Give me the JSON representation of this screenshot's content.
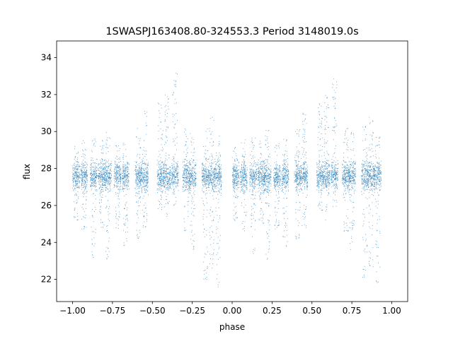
{
  "chart_data": {
    "type": "scatter",
    "title": "1SWASPJ163408.80-324553.3 Period 3148019.0s",
    "xlabel": "phase",
    "ylabel": "flux",
    "xlim": [
      -1.1,
      1.1
    ],
    "ylim": [
      20.8,
      34.9
    ],
    "x_ticks": [
      -1.0,
      -0.75,
      -0.5,
      -0.25,
      0.0,
      0.25,
      0.5,
      0.75,
      1.0
    ],
    "x_tick_labels": [
      "−1.00",
      "−0.75",
      "−0.50",
      "−0.25",
      "0.00",
      "0.25",
      "0.50",
      "0.75",
      "1.00"
    ],
    "y_ticks": [
      22,
      24,
      26,
      28,
      30,
      32,
      34
    ],
    "y_tick_labels": [
      "22",
      "24",
      "26",
      "28",
      "30",
      "32",
      "34"
    ],
    "grid": false,
    "marker_color": "#1f77b4",
    "phase_range": [
      -1.0,
      1.0
    ],
    "baseline_flux": 27.6,
    "clusters": [
      {
        "x": 0.02,
        "y_min": 25.2,
        "y_max": 29.2
      },
      {
        "x": 0.07,
        "y_min": 24.6,
        "y_max": 29.6
      },
      {
        "x": 0.13,
        "y_min": 23.2,
        "y_max": 29.8
      },
      {
        "x": 0.18,
        "y_min": 24.8,
        "y_max": 29.6
      },
      {
        "x": 0.22,
        "y_min": 23.0,
        "y_max": 30.2
      },
      {
        "x": 0.28,
        "y_min": 24.6,
        "y_max": 29.4
      },
      {
        "x": 0.33,
        "y_min": 23.8,
        "y_max": 29.6
      },
      {
        "x": 0.41,
        "y_min": 24.2,
        "y_max": 30.2
      },
      {
        "x": 0.45,
        "y_min": 24.8,
        "y_max": 31.2
      },
      {
        "x": 0.55,
        "y_min": 25.6,
        "y_max": 31.6
      },
      {
        "x": 0.59,
        "y_min": 25.2,
        "y_max": 32.0
      },
      {
        "x": 0.64,
        "y_min": 25.8,
        "y_max": 33.2
      },
      {
        "x": 0.71,
        "y_min": 24.6,
        "y_max": 30.2
      },
      {
        "x": 0.75,
        "y_min": 23.6,
        "y_max": 30.0
      },
      {
        "x": 0.83,
        "y_min": 22.0,
        "y_max": 30.4
      },
      {
        "x": 0.87,
        "y_min": 22.6,
        "y_max": 30.8
      },
      {
        "x": 0.91,
        "y_min": 21.6,
        "y_max": 29.8
      }
    ]
  }
}
